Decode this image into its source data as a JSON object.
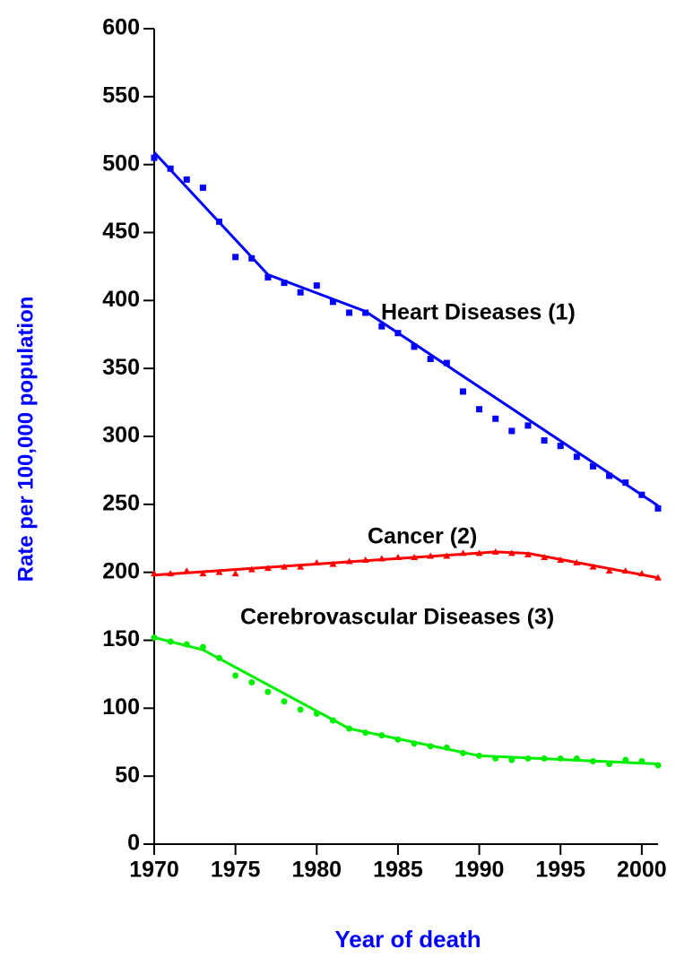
{
  "chart_data": {
    "type": "scatter",
    "x_label": "Year of death",
    "y_label": "Rate per 100,000 population",
    "x": [
      1970,
      1971,
      1972,
      1973,
      1974,
      1975,
      1976,
      1977,
      1978,
      1979,
      1980,
      1981,
      1982,
      1983,
      1984,
      1985,
      1986,
      1987,
      1988,
      1989,
      1990,
      1991,
      1992,
      1993,
      1994,
      1995,
      1996,
      1997,
      1998,
      1999,
      2000,
      2001
    ],
    "series": [
      {
        "name": "Heart Diseases (1)",
        "color": "#0000ff",
        "marker": "square",
        "values": [
          505,
          497,
          489,
          483,
          458,
          432,
          431,
          417,
          413,
          406,
          411,
          399,
          391,
          391,
          381,
          376,
          366,
          357,
          354,
          333,
          320,
          313,
          304,
          308,
          297,
          293,
          285,
          278,
          271,
          266,
          257,
          247
        ],
        "trend_x": [
          1970,
          1977,
          1983,
          2001
        ],
        "trend": [
          509,
          419,
          392,
          249
        ]
      },
      {
        "name": "Cancer (2)",
        "color": "#ff0000",
        "marker": "triangle",
        "values": [
          199,
          199,
          201,
          199,
          200,
          199,
          202,
          203,
          204,
          204,
          207,
          206,
          208,
          209,
          210,
          211,
          211,
          212,
          212,
          214,
          214,
          215,
          214,
          213,
          211,
          209,
          207,
          204,
          201,
          201,
          199,
          196
        ],
        "trend_x": [
          1970,
          1991,
          1993,
          2001
        ],
        "trend": [
          198,
          215,
          214,
          196
        ]
      },
      {
        "name": "Cerebrovascular Diseases (3)",
        "color": "#00ee00",
        "marker": "circle",
        "values": [
          152,
          149,
          147,
          145,
          137,
          124,
          119,
          112,
          105,
          99,
          96,
          91,
          85,
          82,
          80,
          77,
          74,
          72,
          71,
          67,
          65,
          63,
          62,
          63,
          63,
          63,
          63,
          61,
          59,
          62,
          61,
          58
        ],
        "trend_x": [
          1970,
          1973,
          1982,
          1990,
          2001
        ],
        "trend": [
          152,
          143,
          85,
          65,
          59
        ]
      }
    ],
    "xlim": [
      1970,
      2001
    ],
    "xticks": [
      1970,
      1975,
      1980,
      1985,
      1990,
      1995,
      2000
    ],
    "ylim": [
      0,
      600
    ],
    "yticks": [
      0,
      50,
      100,
      150,
      200,
      250,
      300,
      350,
      400,
      450,
      500,
      550,
      600
    ],
    "grid": false
  }
}
